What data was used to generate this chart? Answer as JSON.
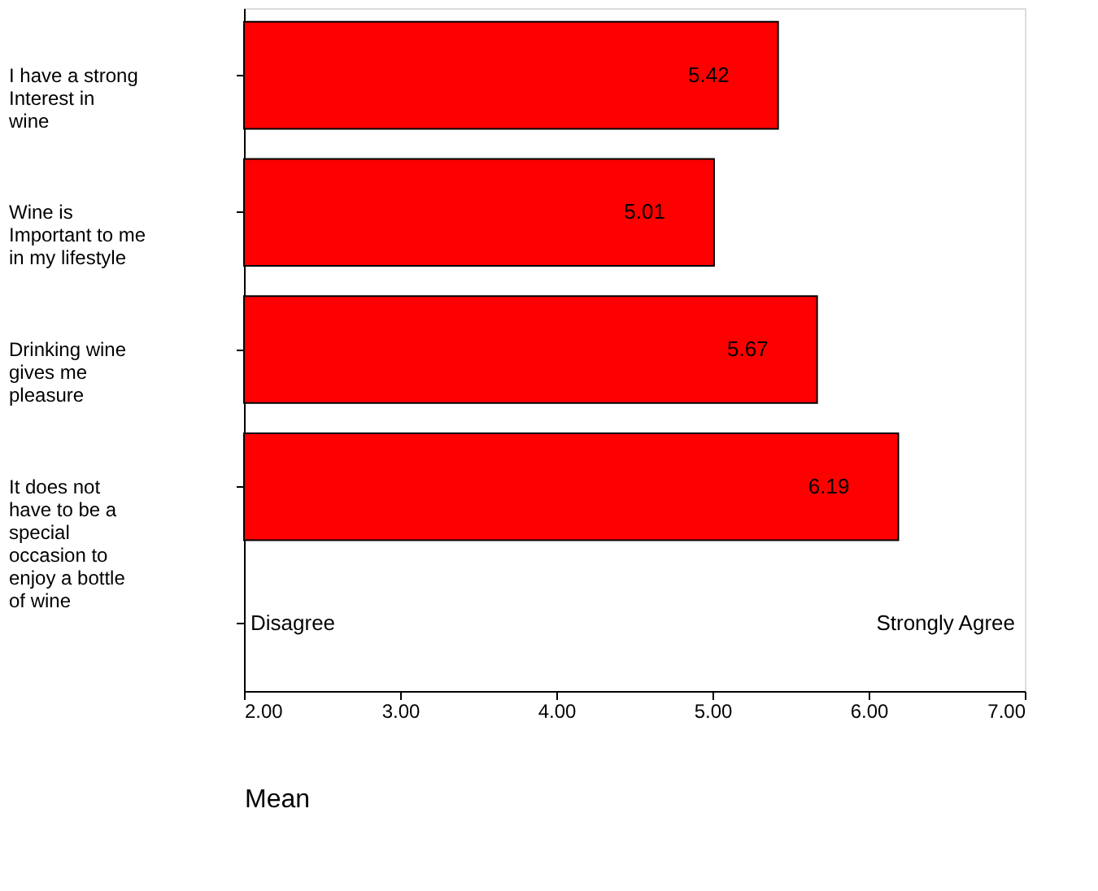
{
  "chart_data": {
    "type": "bar",
    "orientation": "horizontal",
    "xlabel": "Mean",
    "categories": [
      "I have a strong Interest in wine",
      "Wine is Important to me in my lifestyle",
      "Drinking wine gives me pleasure",
      "It does not have to be a special occasion to enjoy a bottle of wine",
      null
    ],
    "values": [
      5.42,
      5.01,
      5.67,
      6.19,
      null
    ],
    "color": "#ff0000",
    "data_labels": true,
    "xlim": [
      2,
      7
    ],
    "xticks": [
      {
        "value": 2,
        "label": "2.00"
      },
      {
        "value": 3,
        "label": "3.00"
      },
      {
        "value": 4,
        "label": "4.00"
      },
      {
        "value": 5,
        "label": "5.00"
      },
      {
        "value": 6,
        "label": "6.00"
      },
      {
        "value": 7,
        "label": "7.00"
      }
    ],
    "annotations": [
      "Disagree",
      "Strongly Agree"
    ],
    "grid": false
  }
}
